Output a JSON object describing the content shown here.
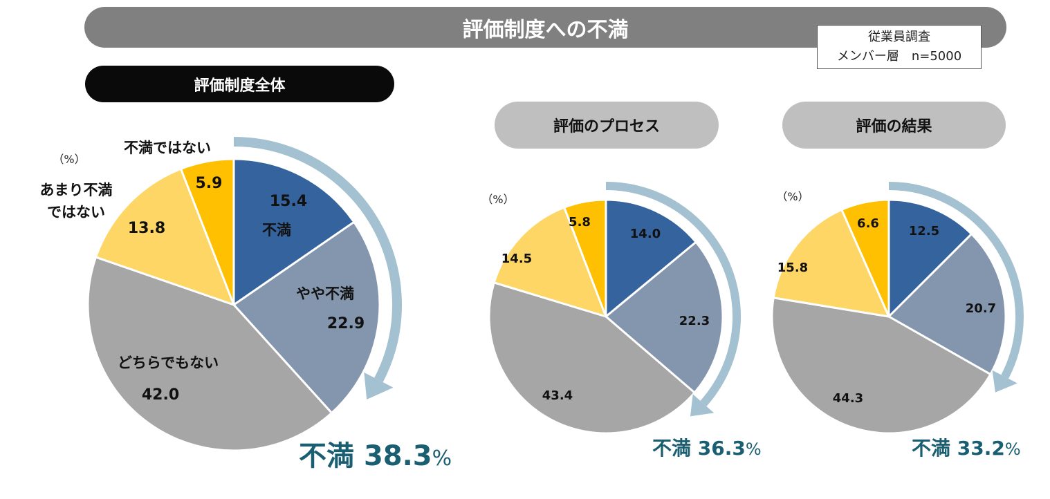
{
  "title": "評価制度への不満",
  "survey": {
    "line1": "従業員調査",
    "line2": "メンバー層　n=5000"
  },
  "colors": {
    "dissatisfied": "#34639e",
    "somewhat_dissatisfied": "#8496ae",
    "neutral": "#a6a6a6",
    "not_very_dissatisfied": "#fdd665",
    "not_dissatisfied": "#fec000",
    "arrow": "#a3c1d0",
    "total_text": "#1a5e72"
  },
  "categories": [
    "不満",
    "やや不満",
    "どちらでもない",
    "あまり不満ではない",
    "不満ではない"
  ],
  "chart_data": [
    {
      "type": "pie",
      "title": "評価制度全体",
      "unit": "（%）",
      "categories": [
        "不満",
        "やや不満",
        "どちらでもない",
        "あまり不満ではない",
        "不満ではない"
      ],
      "values": [
        15.4,
        22.9,
        42.0,
        13.8,
        5.9
      ],
      "value_labels": [
        "15.4",
        "22.9",
        "42.0",
        "13.8",
        "5.9"
      ],
      "label_lines": [
        [
          "不満"
        ],
        [
          "やや不満"
        ],
        [
          "どちらでもない"
        ],
        [
          "あまり不満",
          "ではない"
        ],
        [
          "不満ではない"
        ]
      ],
      "total_label": "不満",
      "total_value": "38.3",
      "total_unit": "%"
    },
    {
      "type": "pie",
      "title": "評価のプロセス",
      "unit": "（%）",
      "categories": [
        "不満",
        "やや不満",
        "どちらでもない",
        "あまり不満ではない",
        "不満ではない"
      ],
      "values": [
        14.0,
        22.3,
        43.4,
        14.5,
        5.8
      ],
      "value_labels": [
        "14.0",
        "22.3",
        "43.4",
        "14.5",
        "5.8"
      ],
      "total_label": "不満",
      "total_value": "36.3",
      "total_unit": "%"
    },
    {
      "type": "pie",
      "title": "評価の結果",
      "unit": "（%）",
      "categories": [
        "不満",
        "やや不満",
        "どちらでもない",
        "あまり不満ではない",
        "不満ではない"
      ],
      "values": [
        12.5,
        20.7,
        44.3,
        15.8,
        6.6
      ],
      "value_labels": [
        "12.5",
        "20.7",
        "44.3",
        "15.8",
        "6.6"
      ],
      "total_label": "不満",
      "total_value": "33.2",
      "total_unit": "%"
    }
  ]
}
